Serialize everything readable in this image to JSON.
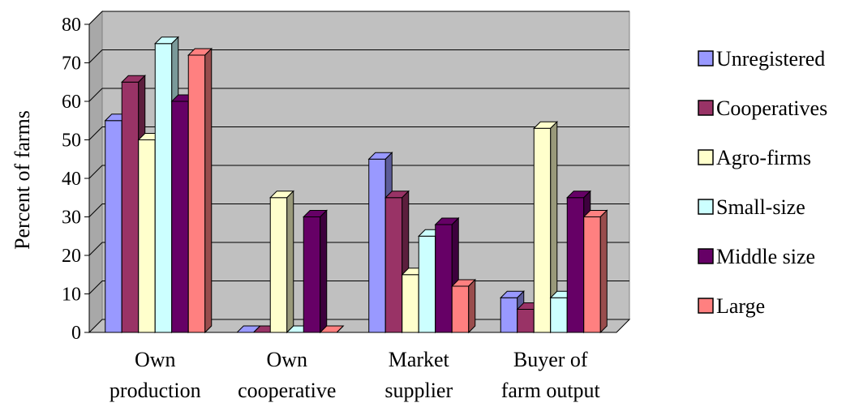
{
  "chart_data": {
    "type": "bar",
    "title": "",
    "xlabel": "",
    "ylabel": "Percent of farms",
    "ylim": [
      0,
      80
    ],
    "yticks": [
      0,
      10,
      20,
      30,
      40,
      50,
      60,
      70,
      80
    ],
    "grid": true,
    "legend_position": "right",
    "categories": [
      [
        "Own",
        "production"
      ],
      [
        "Own",
        "cooperative"
      ],
      [
        "Market",
        "supplier"
      ],
      [
        "Buyer of",
        "farm output"
      ]
    ],
    "series": [
      {
        "name": "Unregistered",
        "color": "#9999ff",
        "values": [
          55,
          0,
          45,
          9
        ]
      },
      {
        "name": "Cooperatives",
        "color": "#993366",
        "values": [
          65,
          0,
          35,
          6
        ]
      },
      {
        "name": "Agro-firms",
        "color": "#ffffcc",
        "values": [
          50,
          35,
          15,
          53
        ]
      },
      {
        "name": "Small-size",
        "color": "#ccffff",
        "values": [
          75,
          0,
          25,
          9
        ]
      },
      {
        "name": "Middle size",
        "color": "#660066",
        "values": [
          60,
          30,
          28,
          35
        ]
      },
      {
        "name": "Large",
        "color": "#ff8080",
        "values": [
          72,
          0,
          12,
          30
        ]
      }
    ]
  }
}
